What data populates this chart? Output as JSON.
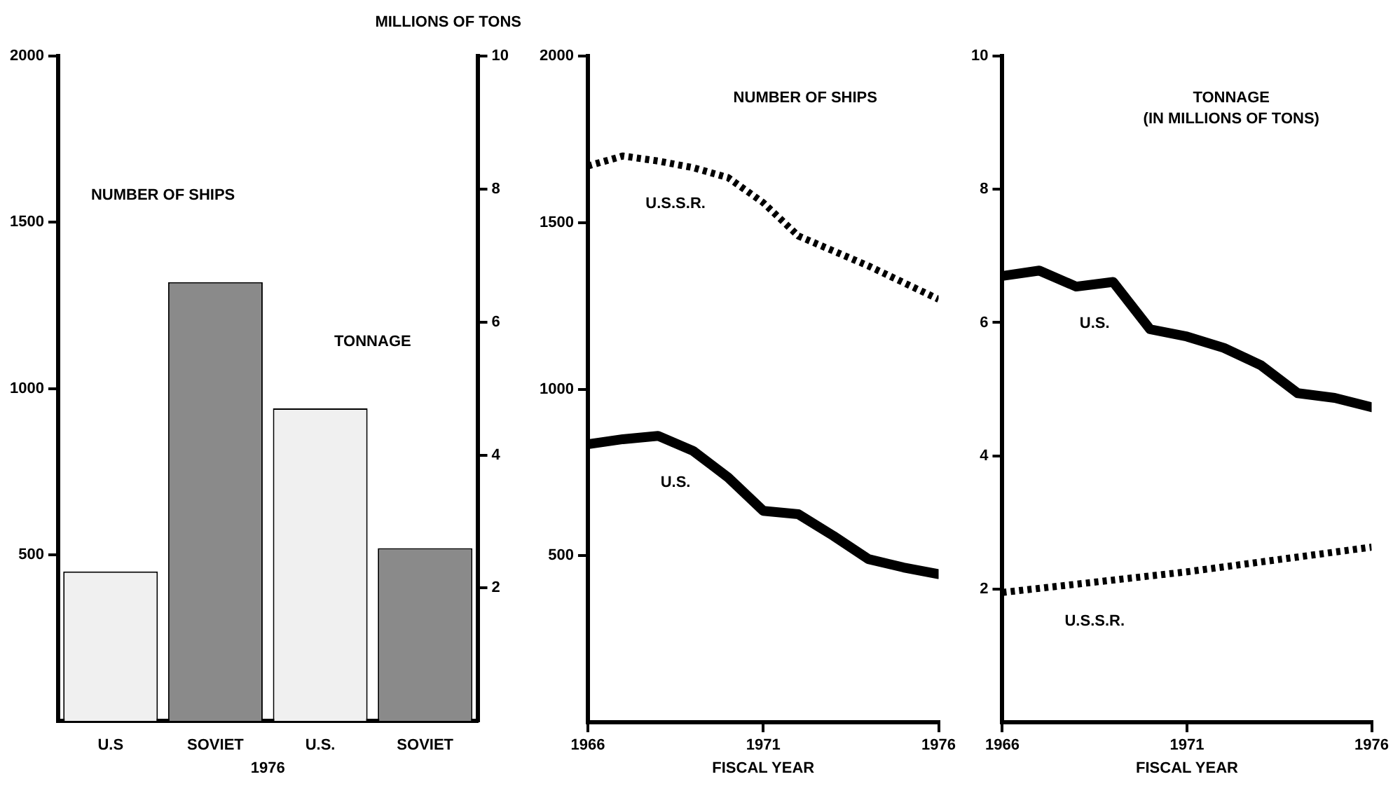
{
  "chart_data": [
    {
      "type": "bar",
      "categories": [
        "U.S",
        "SOVIET",
        "U.S.",
        "SOVIET"
      ],
      "xlabel": "1976",
      "y2label": "MILLIONS OF TONS",
      "annotations": [
        "NUMBER OF SHIPS",
        "TONNAGE"
      ],
      "series": [
        {
          "values": [
            450,
            1320,
            null,
            null
          ],
          "colors": [
            "#f0f0f0",
            "#8a8a8a",
            "#f0f0f0",
            "#8a8a8a"
          ]
        },
        {
          "values": [
            null,
            null,
            4.7,
            2.6
          ],
          "colors": [
            "#f0f0f0",
            "#8a8a8a",
            "#f0f0f0",
            "#8a8a8a"
          ],
          "axis": "y2"
        }
      ],
      "ylim": [
        0,
        2000
      ],
      "yticks": [
        500,
        1000,
        1500,
        2000
      ],
      "y2lim": [
        0,
        10
      ],
      "y2ticks": [
        2,
        4,
        6,
        8,
        10
      ],
      "grid": false,
      "legend": false
    },
    {
      "type": "line",
      "title": "NUMBER OF SHIPS",
      "xlabel": "FISCAL YEAR",
      "x": [
        1966,
        1967,
        1968,
        1969,
        1970,
        1971,
        1972,
        1973,
        1974,
        1975,
        1976
      ],
      "series": [
        {
          "name": "U.S.S.R.",
          "color": "#000000",
          "line_style": "dotted",
          "values": [
            1670,
            1700,
            1685,
            1665,
            1635,
            1560,
            1460,
            1415,
            1370,
            1320,
            1270
          ]
        },
        {
          "name": "U.S.",
          "color": "#000000",
          "line_style": "solid",
          "values": [
            835,
            850,
            860,
            815,
            735,
            635,
            625,
            560,
            490,
            465,
            445
          ]
        }
      ],
      "xlim": [
        1966,
        1976
      ],
      "xticks": [
        1966,
        1971,
        1976
      ],
      "ylim": [
        0,
        2000
      ],
      "yticks": [
        500,
        1000,
        1500,
        2000
      ],
      "grid": false,
      "legend": false,
      "marker": "none"
    },
    {
      "type": "line",
      "title": "TONNAGE",
      "subtitle": "(IN MILLIONS OF TONS)",
      "xlabel": "FISCAL YEAR",
      "x": [
        1966,
        1967,
        1968,
        1969,
        1970,
        1971,
        1972,
        1973,
        1974,
        1975,
        1976
      ],
      "series": [
        {
          "name": "U.S.",
          "color": "#000000",
          "line_style": "solid",
          "values": [
            6.7,
            6.78,
            6.54,
            6.61,
            5.9,
            5.79,
            5.62,
            5.36,
            4.94,
            4.87,
            4.73
          ]
        },
        {
          "name": "U.S.S.R.",
          "color": "#000000",
          "line_style": "dotted",
          "x": [
            1966,
            1971,
            1976
          ],
          "values": [
            1.95,
            2.26,
            2.63
          ]
        }
      ],
      "xlim": [
        1966,
        1976
      ],
      "xticks": [
        1966,
        1971,
        1976
      ],
      "ylim": [
        0,
        10
      ],
      "yticks": [
        2,
        4,
        6,
        8,
        10
      ],
      "grid": false,
      "legend": false,
      "marker": "none"
    }
  ]
}
